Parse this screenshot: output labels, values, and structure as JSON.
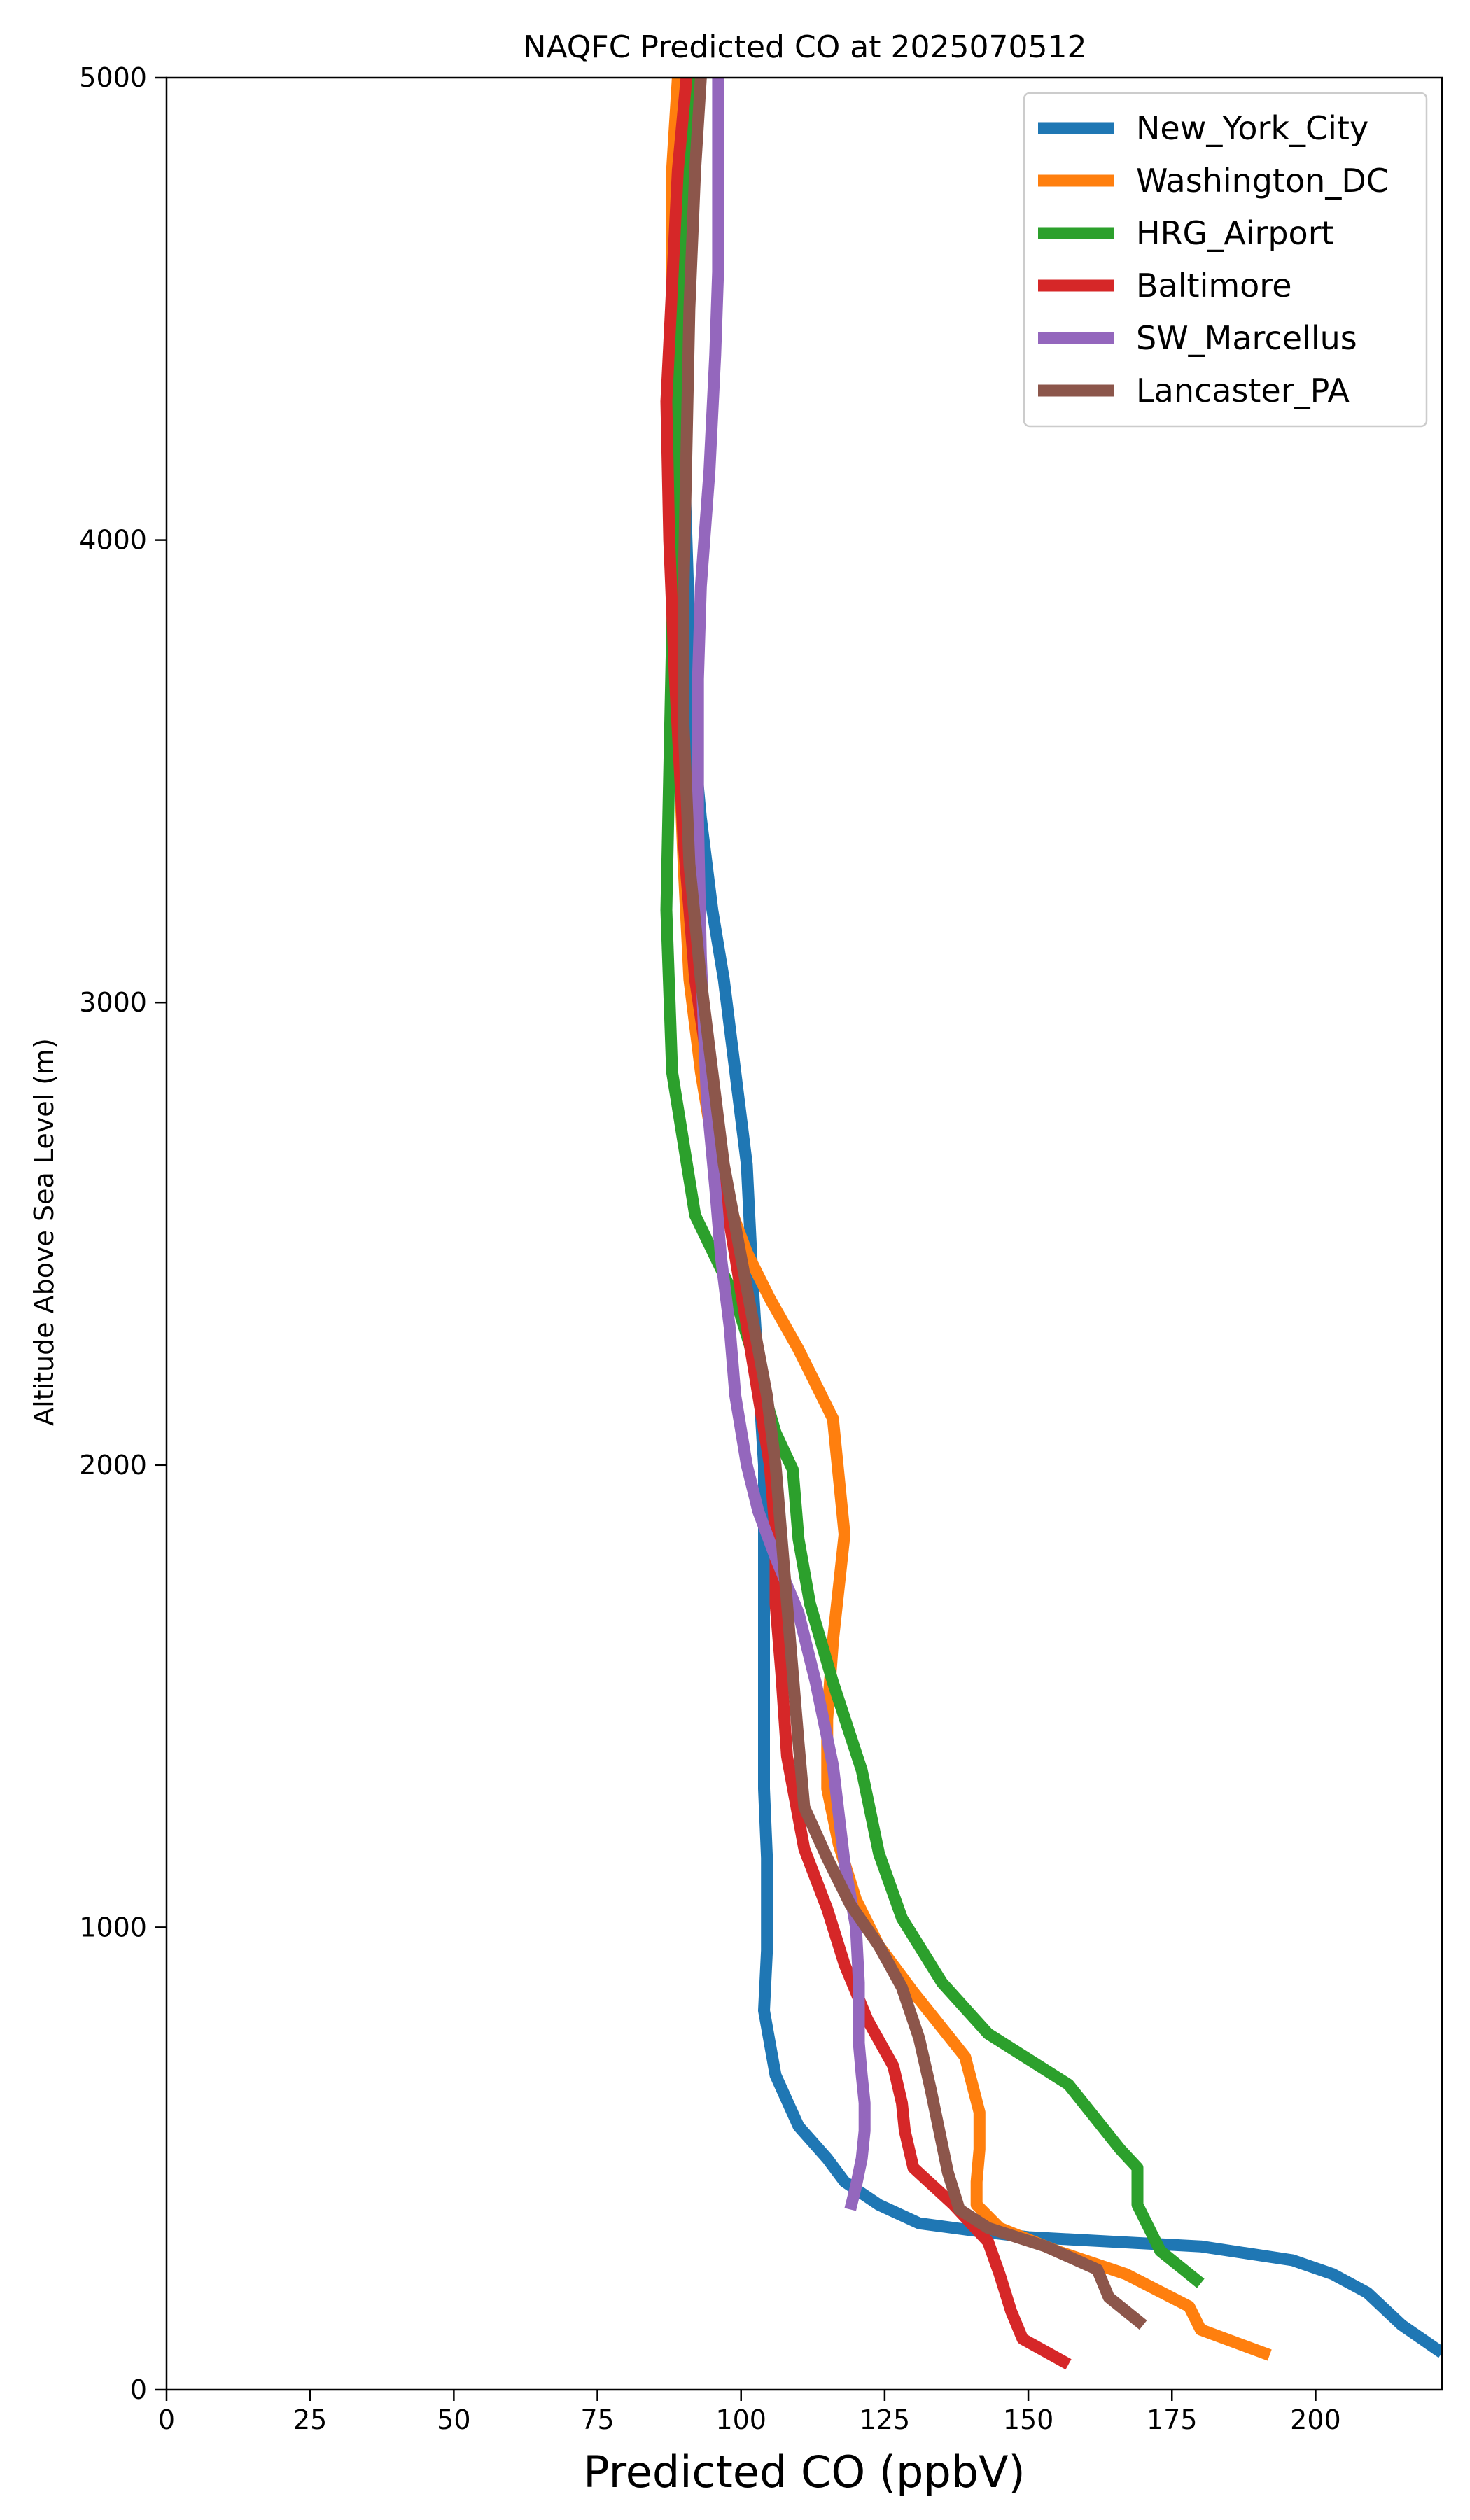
{
  "chart_data": {
    "type": "line",
    "title": "NAQFC Predicted CO at 2025070512",
    "xlabel": "Predicted CO (ppbV)",
    "ylabel": "Altitude Above Sea Level (m)",
    "xlim": [
      0,
      222
    ],
    "ylim": [
      0,
      5000
    ],
    "xticks": [
      0,
      25,
      50,
      75,
      100,
      125,
      150,
      175,
      200
    ],
    "yticks": [
      0,
      1000,
      2000,
      3000,
      4000,
      5000
    ],
    "grid": false,
    "legend_position": "top-right",
    "series": [
      {
        "name": "New_York_City",
        "color": "#1f77b4",
        "points": [
          [
            222,
            80
          ],
          [
            215,
            140
          ],
          [
            209,
            210
          ],
          [
            203,
            250
          ],
          [
            196,
            280
          ],
          [
            180,
            310
          ],
          [
            165,
            320
          ],
          [
            150,
            330
          ],
          [
            140,
            345
          ],
          [
            131,
            360
          ],
          [
            124,
            400
          ],
          [
            118,
            450
          ],
          [
            115,
            500
          ],
          [
            110,
            570
          ],
          [
            106,
            680
          ],
          [
            104,
            820
          ],
          [
            104.5,
            950
          ],
          [
            104.5,
            1150
          ],
          [
            104,
            1300
          ],
          [
            104,
            1500
          ],
          [
            104,
            1700
          ],
          [
            104,
            2000
          ],
          [
            103,
            2200
          ],
          [
            102,
            2400
          ],
          [
            101,
            2650
          ],
          [
            99,
            2850
          ],
          [
            97,
            3050
          ],
          [
            95,
            3200
          ],
          [
            93,
            3400
          ],
          [
            91.5,
            3600
          ],
          [
            91,
            3800
          ],
          [
            90.5,
            4000
          ],
          [
            90,
            4200
          ],
          [
            90,
            4500
          ],
          [
            90,
            4800
          ],
          [
            90,
            5000
          ]
        ]
      },
      {
        "name": "Washington_DC",
        "color": "#ff7f0e",
        "points": [
          [
            192,
            75
          ],
          [
            180,
            130
          ],
          [
            178,
            180
          ],
          [
            167,
            250
          ],
          [
            155,
            300
          ],
          [
            145,
            350
          ],
          [
            141,
            400
          ],
          [
            141,
            450
          ],
          [
            141.5,
            520
          ],
          [
            141.5,
            600
          ],
          [
            139,
            720
          ],
          [
            130,
            860
          ],
          [
            124,
            960
          ],
          [
            120,
            1060
          ],
          [
            117,
            1180
          ],
          [
            115,
            1300
          ],
          [
            115,
            1450
          ],
          [
            116,
            1620
          ],
          [
            118,
            1850
          ],
          [
            116,
            2100
          ],
          [
            110,
            2250
          ],
          [
            105,
            2360
          ],
          [
            101,
            2460
          ],
          [
            98,
            2560
          ],
          [
            95,
            2700
          ],
          [
            93,
            2850
          ],
          [
            91,
            3050
          ],
          [
            90,
            3300
          ],
          [
            89,
            3600
          ],
          [
            88.5,
            3900
          ],
          [
            88,
            4200
          ],
          [
            88,
            4500
          ],
          [
            88,
            4800
          ],
          [
            89,
            5000
          ]
        ]
      },
      {
        "name": "HRG_Airport",
        "color": "#2ca02c",
        "points": [
          [
            180,
            230
          ],
          [
            177,
            260
          ],
          [
            173,
            300
          ],
          [
            169,
            400
          ],
          [
            169,
            480
          ],
          [
            166,
            520
          ],
          [
            157,
            660
          ],
          [
            143,
            770
          ],
          [
            135,
            880
          ],
          [
            128,
            1020
          ],
          [
            124,
            1160
          ],
          [
            121,
            1340
          ],
          [
            116,
            1530
          ],
          [
            112,
            1700
          ],
          [
            110,
            1840
          ],
          [
            109,
            1990
          ],
          [
            106,
            2070
          ],
          [
            103,
            2200
          ],
          [
            99,
            2360
          ],
          [
            92,
            2540
          ],
          [
            88,
            2850
          ],
          [
            87,
            3200
          ],
          [
            87.5,
            3500
          ],
          [
            88,
            3800
          ],
          [
            88.5,
            4100
          ],
          [
            89,
            4400
          ],
          [
            90,
            4700
          ],
          [
            91,
            5000
          ]
        ]
      },
      {
        "name": "Baltimore",
        "color": "#d62728",
        "points": [
          [
            157,
            55
          ],
          [
            149,
            110
          ],
          [
            147,
            170
          ],
          [
            145,
            250
          ],
          [
            143,
            320
          ],
          [
            137,
            400
          ],
          [
            130,
            480
          ],
          [
            128.5,
            560
          ],
          [
            128,
            620
          ],
          [
            126.5,
            700
          ],
          [
            122,
            800
          ],
          [
            118,
            920
          ],
          [
            115,
            1040
          ],
          [
            111,
            1170
          ],
          [
            108,
            1370
          ],
          [
            107,
            1550
          ],
          [
            106,
            1700
          ],
          [
            106,
            1850
          ],
          [
            105,
            2000
          ],
          [
            103,
            2150
          ],
          [
            101,
            2300
          ],
          [
            99,
            2450
          ],
          [
            97,
            2600
          ],
          [
            95,
            2800
          ],
          [
            92,
            3050
          ],
          [
            90,
            3350
          ],
          [
            88.5,
            3700
          ],
          [
            87.5,
            4000
          ],
          [
            87,
            4300
          ],
          [
            88,
            4550
          ],
          [
            89,
            4800
          ],
          [
            90.5,
            5000
          ]
        ]
      },
      {
        "name": "SW_Marcellus",
        "color": "#9467bd",
        "points": [
          [
            119,
            390
          ],
          [
            120,
            440
          ],
          [
            121,
            500
          ],
          [
            121.5,
            560
          ],
          [
            121.5,
            620
          ],
          [
            121,
            680
          ],
          [
            120.5,
            750
          ],
          [
            120.5,
            880
          ],
          [
            120,
            1000
          ],
          [
            118,
            1140
          ],
          [
            116,
            1350
          ],
          [
            113,
            1530
          ],
          [
            110,
            1680
          ],
          [
            106,
            1800
          ],
          [
            103,
            1900
          ],
          [
            101,
            2000
          ],
          [
            99,
            2150
          ],
          [
            98,
            2300
          ],
          [
            96.5,
            2450
          ],
          [
            95.5,
            2600
          ],
          [
            94,
            2800
          ],
          [
            93,
            3100
          ],
          [
            92.5,
            3400
          ],
          [
            92.5,
            3700
          ],
          [
            93,
            3900
          ],
          [
            94.5,
            4150
          ],
          [
            95.5,
            4400
          ],
          [
            96,
            4580
          ],
          [
            96,
            4800
          ],
          [
            96,
            5000
          ]
        ]
      },
      {
        "name": "Lancaster_PA",
        "color": "#8c564b",
        "points": [
          [
            170,
            140
          ],
          [
            164,
            200
          ],
          [
            162,
            260
          ],
          [
            153,
            310
          ],
          [
            143,
            350
          ],
          [
            138,
            390
          ],
          [
            136,
            470
          ],
          [
            134.5,
            560
          ],
          [
            133,
            650
          ],
          [
            131,
            760
          ],
          [
            128,
            870
          ],
          [
            124,
            960
          ],
          [
            119,
            1050
          ],
          [
            115,
            1150
          ],
          [
            111,
            1260
          ],
          [
            110,
            1400
          ],
          [
            109,
            1550
          ],
          [
            108,
            1700
          ],
          [
            107,
            1850
          ],
          [
            106,
            2000
          ],
          [
            104.5,
            2150
          ],
          [
            103,
            2250
          ],
          [
            100,
            2450
          ],
          [
            97,
            2650
          ],
          [
            95,
            2850
          ],
          [
            93,
            3050
          ],
          [
            91,
            3300
          ],
          [
            90,
            3600
          ],
          [
            90,
            3900
          ],
          [
            90.5,
            4200
          ],
          [
            91,
            4500
          ],
          [
            92,
            4800
          ],
          [
            93,
            5000
          ]
        ]
      }
    ]
  }
}
